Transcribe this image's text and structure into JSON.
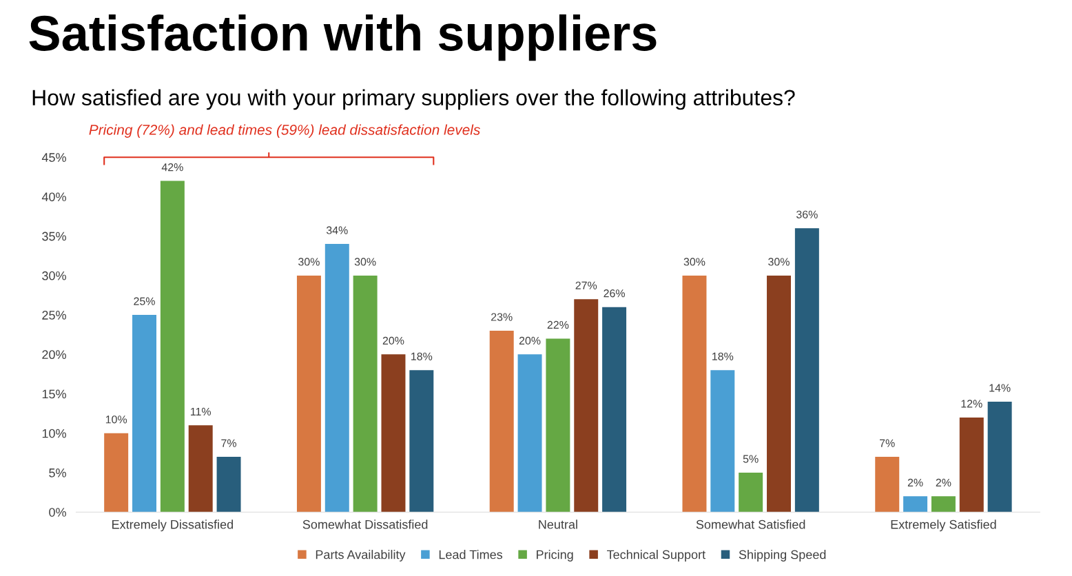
{
  "chart_data": {
    "type": "bar",
    "title": "Satisfaction with suppliers",
    "subtitle": "How satisfied are you with your primary suppliers over the following attributes?",
    "annotations": [
      "Pricing (72%) and lead times (59%) lead dissatisfaction levels"
    ],
    "categories": [
      "Extremely Dissatisfied",
      "Somewhat Dissatisfied",
      "Neutral",
      "Somewhat Satisfied",
      "Extremely Satisfied"
    ],
    "series": [
      {
        "name": "Parts Availability",
        "color": "#d87841",
        "values": [
          10,
          30,
          23,
          30,
          7
        ],
        "value_labels": [
          "10%",
          "30%",
          "23%",
          "30%",
          "7%"
        ]
      },
      {
        "name": "Lead Times",
        "color": "#4a9fd4",
        "values": [
          25,
          34,
          20,
          18,
          2
        ],
        "value_labels": [
          "25%",
          "34%",
          "20%",
          "18%",
          "2%"
        ]
      },
      {
        "name": "Pricing",
        "color": "#65a844",
        "values": [
          42,
          30,
          22,
          5,
          2
        ],
        "value_labels": [
          "42%",
          "30%",
          "22%",
          "5%",
          "2%"
        ]
      },
      {
        "name": "Technical Support",
        "color": "#8b3f1f",
        "values": [
          11,
          20,
          27,
          30,
          12
        ],
        "value_labels": [
          "11%",
          "20%",
          "27%",
          "30%",
          "12%"
        ]
      },
      {
        "name": "Shipping Speed",
        "color": "#285e7c",
        "values": [
          7,
          18,
          26,
          36,
          14
        ],
        "value_labels": [
          "7%",
          "18%",
          "26%",
          "36%",
          "14%"
        ]
      }
    ],
    "ylim": [
      0,
      45
    ],
    "yticks": [
      {
        "value": 0,
        "label": "0%"
      },
      {
        "value": 5,
        "label": "5%"
      },
      {
        "value": 10,
        "label": "10%"
      },
      {
        "value": 15,
        "label": "15%"
      },
      {
        "value": 20,
        "label": "20%"
      },
      {
        "value": 25,
        "label": "25%"
      },
      {
        "value": 30,
        "label": "30%"
      },
      {
        "value": 35,
        "label": "35%"
      },
      {
        "value": 40,
        "label": "40%"
      },
      {
        "value": 45,
        "label": "45%"
      }
    ],
    "grid": false,
    "legend": "bottom"
  }
}
